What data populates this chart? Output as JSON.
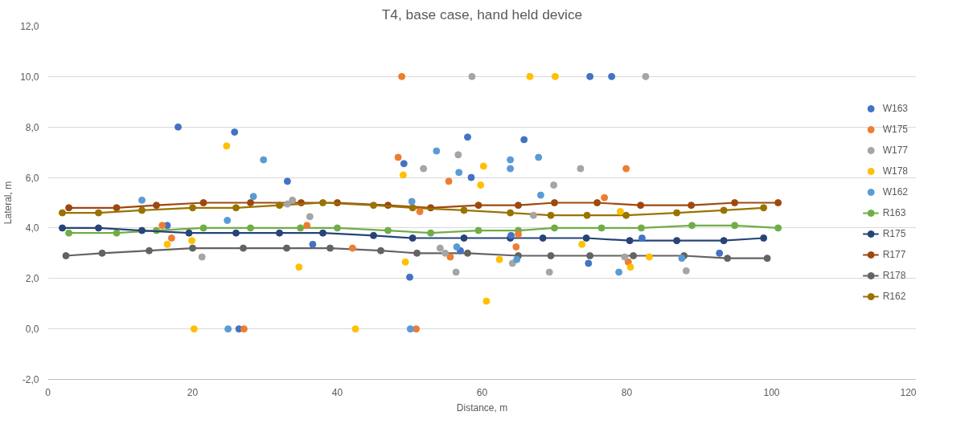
{
  "chart_data": {
    "type": "scatter",
    "title": "T4, base case, hand held device",
    "xlabel": "Distance, m",
    "ylabel": "Lateral, m",
    "xlim": [
      0,
      120
    ],
    "xticks": [
      0,
      20,
      40,
      60,
      80,
      100,
      120
    ],
    "ylim": [
      -2,
      12
    ],
    "yticks": [
      {
        "value": -2,
        "label": "-2,0"
      },
      {
        "value": 0,
        "label": "0,0"
      },
      {
        "value": 2,
        "label": "2,0"
      },
      {
        "value": 4,
        "label": "4,0"
      },
      {
        "value": 6,
        "label": "6,0"
      },
      {
        "value": 8,
        "label": "8,0"
      },
      {
        "value": 10,
        "label": "10,0"
      },
      {
        "value": 12,
        "label": "12,0"
      }
    ],
    "grid": "y",
    "legend": "right",
    "marker": "circle",
    "series": [
      {
        "name": "W163",
        "color": "#4472c4",
        "x": [
          18.0,
          25.8,
          16.5,
          26.4,
          33.1,
          36.6,
          49.2,
          58.0,
          58.5,
          50.0,
          57.0,
          64.0,
          65.8,
          74.9,
          77.9,
          82.1,
          74.7,
          92.8
        ],
        "values": [
          8.0,
          7.8,
          4.1,
          0,
          5.85,
          3.35,
          6.55,
          7.6,
          6.0,
          2.05,
          3.1,
          3.7,
          7.5,
          10.0,
          10.0,
          3.6,
          2.6,
          3.0
        ]
      },
      {
        "name": "W175",
        "color": "#ed7d31",
        "x": [
          15.8,
          17.1,
          27.1,
          48.9,
          48.4,
          35.8,
          42.1,
          51.4,
          55.4,
          55.6,
          50.9,
          79.9,
          76.9,
          65.0,
          64.7,
          80.2
        ],
        "values": [
          4.1,
          3.6,
          0,
          10.0,
          6.8,
          4.1,
          3.2,
          4.65,
          5.85,
          2.85,
          0,
          6.35,
          5.2,
          3.75,
          3.25,
          2.65
        ]
      },
      {
        "name": "W177",
        "color": "#a5a5a5",
        "x": [
          21.3,
          58.6,
          56.7,
          51.9,
          33.1,
          33.8,
          36.2,
          54.2,
          54.9,
          56.4,
          82.6,
          73.6,
          69.9,
          67.1,
          69.3,
          79.7,
          88.2,
          64.2
        ],
        "values": [
          2.85,
          10.0,
          6.9,
          6.35,
          4.95,
          5.1,
          4.45,
          3.2,
          3.0,
          2.25,
          10.0,
          6.35,
          5.7,
          4.5,
          2.25,
          2.85,
          2.3,
          2.6
        ]
      },
      {
        "name": "W178",
        "color": "#ffc000",
        "x": [
          24.7,
          16.5,
          19.9,
          20.2,
          49.1,
          60.2,
          59.8,
          34.7,
          49.4,
          60.6,
          62.4,
          42.5,
          66.6,
          70.1,
          79.1,
          73.8,
          83.1,
          80.5
        ],
        "values": [
          7.25,
          3.35,
          3.5,
          0,
          6.1,
          6.45,
          5.7,
          2.45,
          2.65,
          1.1,
          2.75,
          0,
          10.0,
          10.0,
          4.65,
          3.35,
          2.85,
          2.45
        ]
      },
      {
        "name": "W162",
        "color": "#5b9bd5",
        "x": [
          29.8,
          13.0,
          28.4,
          24.8,
          24.9,
          53.7,
          56.8,
          50.3,
          56.5,
          50.1,
          63.9,
          63.9,
          67.8,
          68.1,
          64.8,
          78.9,
          87.6
        ],
        "values": [
          6.7,
          5.1,
          5.25,
          4.3,
          0,
          7.05,
          6.2,
          5.05,
          3.25,
          0,
          6.7,
          6.35,
          6.8,
          5.3,
          2.75,
          2.25,
          2.8
        ]
      },
      {
        "name": "R163",
        "type": "line",
        "color": "#70ad47",
        "x": [
          2.9,
          9.5,
          15.0,
          21.5,
          28.0,
          34.9,
          40.0,
          47.0,
          52.9,
          59.5,
          65.0,
          70.0,
          76.5,
          82.0,
          89.0,
          94.9,
          100.9
        ],
        "values": [
          3.8,
          3.8,
          3.9,
          4.0,
          4.0,
          4.0,
          4.0,
          3.9,
          3.8,
          3.9,
          3.9,
          4.0,
          4.0,
          4.0,
          4.1,
          4.1,
          4.0
        ]
      },
      {
        "name": "R175",
        "type": "line",
        "color": "#264478",
        "x": [
          2.0,
          7.0,
          13.0,
          19.5,
          26.0,
          32.0,
          38.0,
          45.0,
          50.4,
          57.5,
          63.9,
          68.4,
          74.4,
          80.4,
          86.9,
          93.4,
          98.9
        ],
        "values": [
          4.0,
          4.0,
          3.9,
          3.8,
          3.8,
          3.8,
          3.8,
          3.7,
          3.6,
          3.6,
          3.6,
          3.6,
          3.6,
          3.5,
          3.5,
          3.5,
          3.6
        ]
      },
      {
        "name": "R177",
        "type": "line",
        "color": "#9e480e",
        "x": [
          2.9,
          9.5,
          15.0,
          21.5,
          28.0,
          35.0,
          40.0,
          47.0,
          52.9,
          59.5,
          65.0,
          70.0,
          75.9,
          81.9,
          88.9,
          94.9,
          100.9
        ],
        "values": [
          4.8,
          4.8,
          4.9,
          5.0,
          5.0,
          5.0,
          5.0,
          4.9,
          4.8,
          4.9,
          4.9,
          5.0,
          5.0,
          4.9,
          4.9,
          5.0,
          5.0
        ]
      },
      {
        "name": "R178",
        "type": "line",
        "color": "#636363",
        "x": [
          2.5,
          7.5,
          14.0,
          20.0,
          27.0,
          33.0,
          39.0,
          46.0,
          51.0,
          58.0,
          65.0,
          69.5,
          74.9,
          80.9,
          87.9,
          93.9,
          99.4
        ],
        "values": [
          2.9,
          3.0,
          3.1,
          3.2,
          3.2,
          3.2,
          3.2,
          3.1,
          3.0,
          3.0,
          2.9,
          2.9,
          2.9,
          2.9,
          2.9,
          2.8,
          2.8
        ]
      },
      {
        "name": "R162",
        "type": "line",
        "color": "#997300",
        "x": [
          2.0,
          7.0,
          13.0,
          20.0,
          26.0,
          32.0,
          38.0,
          45.0,
          50.4,
          57.5,
          63.9,
          69.5,
          74.5,
          79.9,
          86.9,
          93.4,
          98.9
        ],
        "values": [
          4.6,
          4.6,
          4.7,
          4.8,
          4.8,
          4.9,
          5.0,
          4.9,
          4.8,
          4.7,
          4.6,
          4.5,
          4.5,
          4.5,
          4.6,
          4.7,
          4.8
        ]
      }
    ]
  }
}
